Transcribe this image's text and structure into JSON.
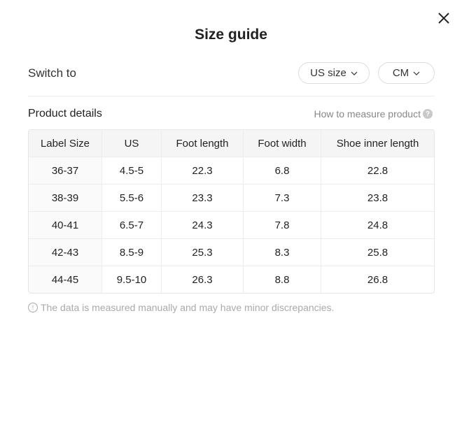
{
  "dialog": {
    "title": "Size guide",
    "close_icon": "close-icon"
  },
  "switch": {
    "label": "Switch to",
    "size_system": "US size",
    "unit": "CM"
  },
  "product": {
    "heading": "Product details",
    "how_to_measure": "How to measure product"
  },
  "table": {
    "headers": [
      "Label Size",
      "US",
      "Foot length",
      "Foot width",
      "Shoe inner length"
    ],
    "rows": [
      [
        "36-37",
        "4.5-5",
        "22.3",
        "6.8",
        "22.8"
      ],
      [
        "38-39",
        "5.5-6",
        "23.3",
        "7.3",
        "23.8"
      ],
      [
        "40-41",
        "6.5-7",
        "24.3",
        "7.8",
        "24.8"
      ],
      [
        "42-43",
        "8.5-9",
        "25.3",
        "8.3",
        "25.8"
      ],
      [
        "44-45",
        "9.5-10",
        "26.3",
        "8.8",
        "26.8"
      ]
    ]
  },
  "note": "The data is measured manually and may have minor discrepancies."
}
